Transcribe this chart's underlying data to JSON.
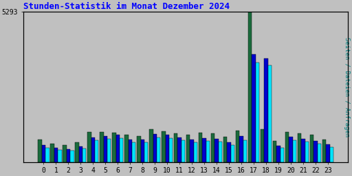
{
  "title": "Stunden-Statistik im Monat Dezember 2024",
  "title_color": "#0000FF",
  "ylabel": "Seiten / Dateien / Anfragen",
  "ylabel_color": "#008080",
  "background_color": "#C0C0C0",
  "plot_bg_color": "#C0C0C0",
  "ytick_label": "5293",
  "hours": [
    0,
    1,
    2,
    3,
    4,
    5,
    6,
    7,
    8,
    9,
    10,
    11,
    12,
    13,
    14,
    15,
    16,
    17,
    18,
    19,
    20,
    21,
    22,
    23
  ],
  "seiten": [
    800,
    650,
    600,
    700,
    1050,
    1050,
    1020,
    950,
    900,
    1150,
    1080,
    1000,
    950,
    1030,
    1000,
    880,
    1100,
    5293,
    1150,
    750,
    1060,
    1000,
    960,
    800
  ],
  "dateien": [
    600,
    500,
    450,
    550,
    870,
    920,
    950,
    800,
    790,
    980,
    960,
    870,
    800,
    840,
    820,
    700,
    920,
    3800,
    3650,
    580,
    890,
    820,
    750,
    620
  ],
  "anfragen": [
    500,
    430,
    400,
    470,
    760,
    820,
    840,
    700,
    680,
    860,
    840,
    760,
    700,
    730,
    720,
    600,
    770,
    3500,
    3400,
    490,
    760,
    710,
    640,
    530
  ],
  "color_seiten": "#1A6B3C",
  "color_dateien": "#0000CD",
  "color_anfragen": "#00E5FF",
  "ylim_max": 5293,
  "grid_color": "#999999",
  "grid_lines": 6
}
